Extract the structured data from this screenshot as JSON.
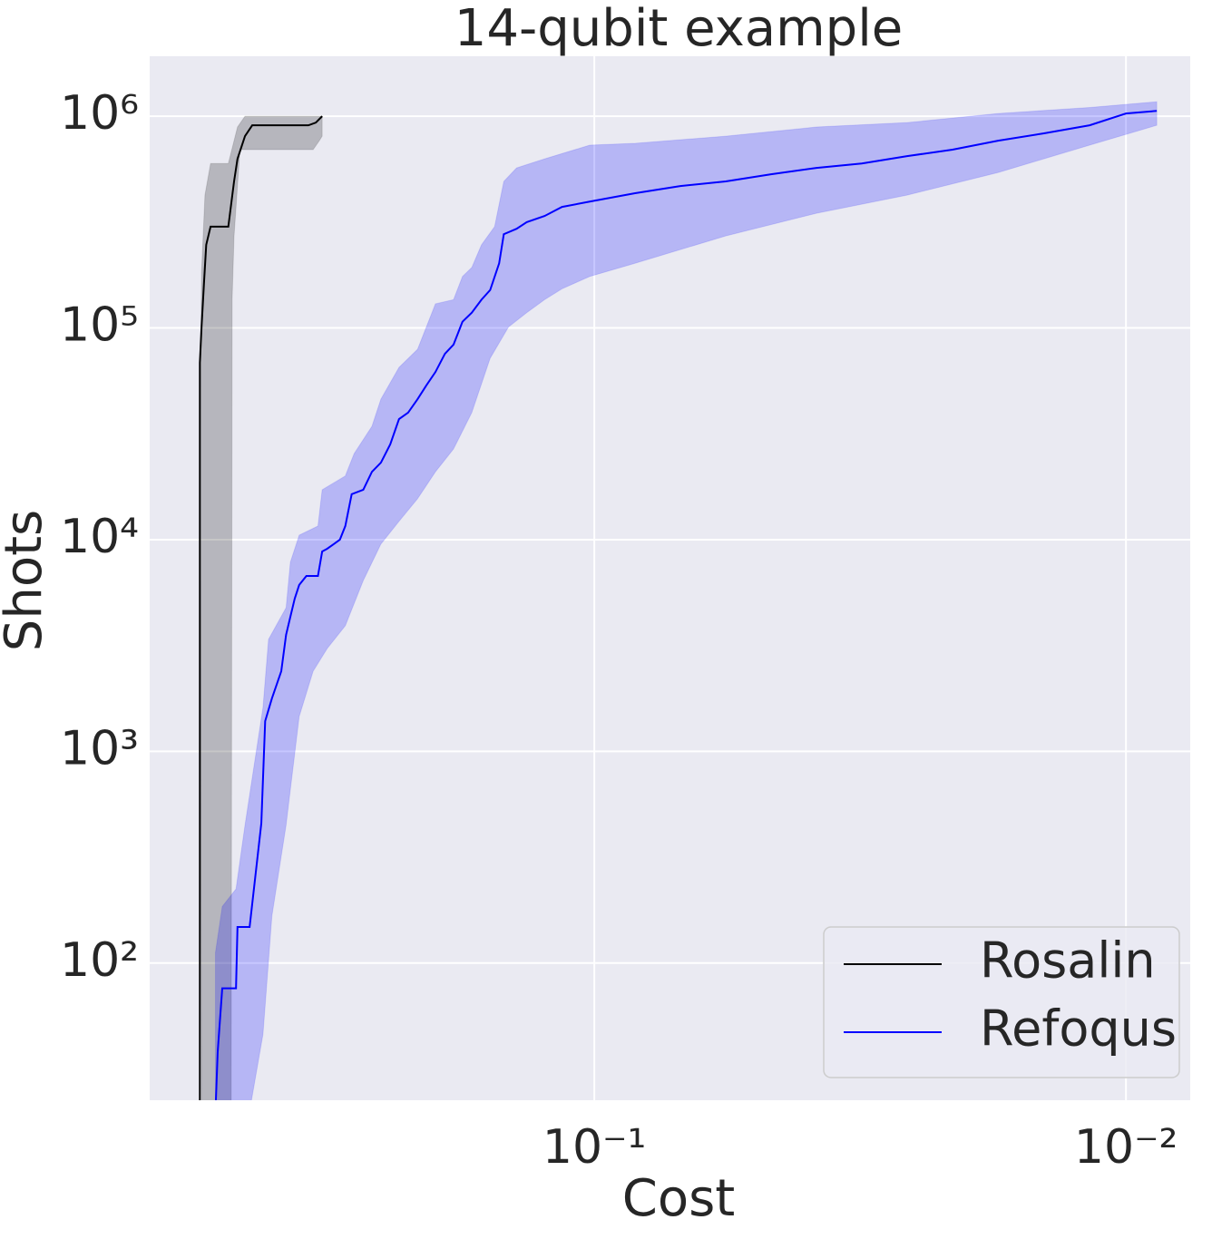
{
  "chart_data": {
    "type": "line",
    "title": "14-qubit example",
    "x_label": "Cost",
    "y_label": "Shots",
    "log_x": true,
    "log_y": true,
    "grid": true,
    "legend": "lower right",
    "xlim": [
      0.686,
      0.00757
    ],
    "ylim": [
      22.5,
      1920000
    ],
    "xticks": [
      {
        "value": 0.1,
        "label": "10⁻¹"
      },
      {
        "value": 0.01,
        "label": "10⁻²"
      }
    ],
    "yticks": [
      {
        "value": 100,
        "label": "10²"
      },
      {
        "value": 1000,
        "label": "10³"
      },
      {
        "value": 10000,
        "label": "10⁴"
      },
      {
        "value": 100000,
        "label": "10⁵"
      },
      {
        "value": 1000000,
        "label": "10⁶"
      }
    ],
    "series": [
      {
        "name": "Rosalin",
        "color": "#000000",
        "x": [
          0.552,
          0.552,
          0.548,
          0.542,
          0.537,
          0.527,
          0.488,
          0.476,
          0.469,
          0.454,
          0.44,
          0.345,
          0.334,
          0.325
        ],
        "values": [
          22.5,
          68400,
          101000,
          166000,
          247000,
          301000,
          301000,
          492000,
          629000,
          805000,
          906000,
          906000,
          933000,
          1000000
        ],
        "band_upper": {
          "x": [
            0.552,
            0.548,
            0.54,
            0.527,
            0.488,
            0.469,
            0.454,
            0.325
          ],
          "values": [
            28200,
            183000,
            424000,
            598000,
            598000,
            889000,
            1000000,
            1000000
          ]
        },
        "band_lower": {
          "x": [
            0.548,
            0.482,
            0.48,
            0.476,
            0.464,
            0.338,
            0.329,
            0.325
          ],
          "values": [
            20,
            20,
            136000,
            272000,
            695000,
            695000,
            766000,
            805000
          ]
        }
      },
      {
        "name": "Refoqus",
        "color": "#0000ff",
        "x": [
          0.515,
          0.511,
          0.501,
          0.472,
          0.469,
          0.445,
          0.423,
          0.416,
          0.404,
          0.388,
          0.38,
          0.373,
          0.366,
          0.359,
          0.348,
          0.331,
          0.325,
          0.318,
          0.309,
          0.301,
          0.294,
          0.286,
          0.272,
          0.262,
          0.252,
          0.242,
          0.233,
          0.224,
          0.215,
          0.207,
          0.199,
          0.191,
          0.184,
          0.177,
          0.17,
          0.163,
          0.157,
          0.151,
          0.148,
          0.14,
          0.134,
          0.124,
          0.115,
          0.102,
          0.0838,
          0.0689,
          0.0566,
          0.0465,
          0.0382,
          0.0314,
          0.0258,
          0.0212,
          0.0174,
          0.0143,
          0.0117,
          0.01,
          0.00875
        ],
        "values": [
          22.5,
          38,
          76,
          76,
          148,
          148,
          457,
          1390,
          1780,
          2390,
          3550,
          4320,
          5270,
          6110,
          6740,
          6740,
          8790,
          9060,
          9530,
          10000,
          11600,
          16400,
          17200,
          20900,
          23100,
          28200,
          37100,
          39800,
          46100,
          53500,
          61900,
          75500,
          83400,
          107000,
          118000,
          136000,
          151000,
          202000,
          277000,
          294000,
          316000,
          338000,
          373000,
          395000,
          433000,
          468000,
          492000,
          532000,
          570000,
          598000,
          648000,
          695000,
          766000,
          829000,
          906000,
          1030000,
          1060000
        ],
        "band_upper": {
          "x": [
            0.516,
            0.501,
            0.472,
            0.454,
            0.42,
            0.41,
            0.38,
            0.373,
            0.359,
            0.331,
            0.325,
            0.294,
            0.283,
            0.262,
            0.252,
            0.233,
            0.215,
            0.207,
            0.199,
            0.184,
            0.177,
            0.17,
            0.163,
            0.154,
            0.148,
            0.14,
            0.124,
            0.102,
            0.0838,
            0.0566,
            0.0382,
            0.0258,
            0.0174,
            0.0117,
            0.00875
          ],
          "values": [
            112,
            185,
            224,
            448,
            1610,
            3380,
            4770,
            7820,
            10500,
            11600,
            17200,
            20000,
            25500,
            34300,
            46100,
            65100,
            79300,
            101000,
            130000,
            136000,
            175000,
            193000,
            247000,
            301000,
            492000,
            570000,
            629000,
            730000,
            745000,
            805000,
            889000,
            933000,
            1030000,
            1100000,
            1170000
          ]
        },
        "band_lower": {
          "x": [
            0.516,
            0.445,
            0.42,
            0.404,
            0.38,
            0.359,
            0.338,
            0.318,
            0.294,
            0.272,
            0.252,
            0.233,
            0.215,
            0.199,
            0.184,
            0.17,
            0.157,
            0.145,
            0.134,
            0.124,
            0.115,
            0.102,
            0.0838,
            0.0566,
            0.0382,
            0.0258,
            0.0174,
            0.0117,
            0.00875
          ],
          "values": [
            20,
            20,
            46,
            167,
            448,
            1460,
            2390,
            3060,
            3920,
            6410,
            9530,
            12200,
            15600,
            20900,
            26800,
            39800,
            71900,
            101000,
            118000,
            136000,
            153000,
            175000,
            202000,
            272000,
            348000,
            424000,
            542000,
            730000,
            906000
          ]
        }
      }
    ]
  }
}
